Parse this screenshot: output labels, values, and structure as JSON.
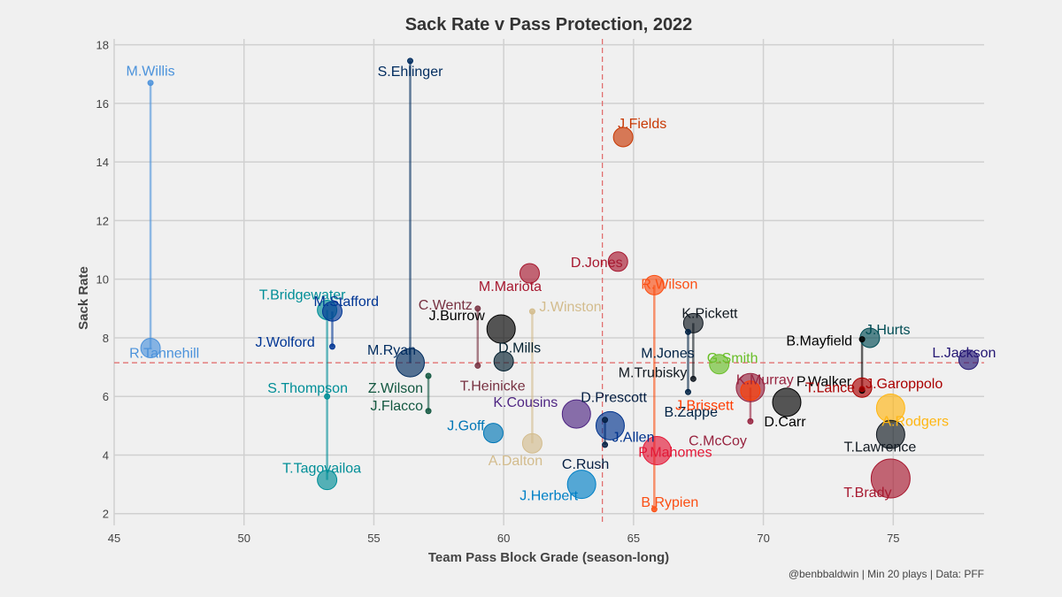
{
  "chart_data": {
    "type": "scatter",
    "title": "Sack Rate v Pass Protection, 2022",
    "xlabel": "Team Pass Block Grade (season-long)",
    "ylabel": "Sack Rate",
    "caption": "@benbbaldwin | Min 20 plays | Data: PFF",
    "xlim": [
      45,
      78.5
    ],
    "ylim": [
      1.6,
      18.2
    ],
    "xticks": [
      45,
      50,
      55,
      60,
      65,
      70,
      75
    ],
    "yticks": [
      2,
      4,
      6,
      8,
      10,
      12,
      14,
      16,
      18
    ],
    "grid": true,
    "reference_lines": {
      "x": 63.8,
      "y": 7.15
    },
    "points": [
      {
        "label": "M.Willis",
        "x": 46.4,
        "y": 16.7,
        "size": "small",
        "color": "#4b92db"
      },
      {
        "label": "R.Tannehill",
        "x": 46.4,
        "y": 7.65,
        "size": "medium",
        "color": "#4b92db"
      },
      {
        "label": "S.Ehlinger",
        "x": 56.4,
        "y": 17.45,
        "size": "small",
        "color": "#002c5f"
      },
      {
        "label": "M.Ryan",
        "x": 56.4,
        "y": 7.15,
        "size": "large",
        "color": "#002c5f"
      },
      {
        "label": "T.Bridgewater",
        "x": 53.2,
        "y": 8.95,
        "size": "medium",
        "color": "#008e97"
      },
      {
        "label": "S.Thompson",
        "x": 53.2,
        "y": 6.0,
        "size": "small",
        "color": "#008e97"
      },
      {
        "label": "T.Tagovailoa",
        "x": 53.2,
        "y": 3.15,
        "size": "medium",
        "color": "#008e97"
      },
      {
        "label": "M.Stafford",
        "x": 53.4,
        "y": 8.9,
        "size": "medium",
        "color": "#003594"
      },
      {
        "label": "J.Wolford",
        "x": 53.4,
        "y": 7.7,
        "size": "small",
        "color": "#003594"
      },
      {
        "label": "Z.Wilson",
        "x": 57.1,
        "y": 6.7,
        "size": "small",
        "color": "#125740"
      },
      {
        "label": "J.Flacco",
        "x": 57.1,
        "y": 5.5,
        "size": "small",
        "color": "#125740"
      },
      {
        "label": "C.Wentz",
        "x": 59.0,
        "y": 9.0,
        "size": "small",
        "color": "#773141"
      },
      {
        "label": "T.Heinicke",
        "x": 59.0,
        "y": 7.05,
        "size": "small",
        "color": "#773141"
      },
      {
        "label": "J.Burrow",
        "x": 59.9,
        "y": 8.3,
        "size": "large",
        "color": "#000000"
      },
      {
        "label": "D.Mills",
        "x": 60.0,
        "y": 7.2,
        "size": "medium",
        "color": "#03202f"
      },
      {
        "label": "M.Mariota",
        "x": 61.0,
        "y": 10.2,
        "size": "medium",
        "color": "#a71930"
      },
      {
        "label": "J.Winston",
        "x": 61.1,
        "y": 8.9,
        "size": "small",
        "color": "#d3bc8d"
      },
      {
        "label": "A.Dalton",
        "x": 61.1,
        "y": 4.4,
        "size": "medium",
        "color": "#d3bc8d"
      },
      {
        "label": "K.Cousins",
        "x": 62.8,
        "y": 5.4,
        "size": "large",
        "color": "#4f2683"
      },
      {
        "label": "J.Goff",
        "x": 59.6,
        "y": 4.75,
        "size": "medium",
        "color": "#0076b6"
      },
      {
        "label": "J.Herbert",
        "x": 63.0,
        "y": 3.0,
        "size": "large",
        "color": "#0080c6"
      },
      {
        "label": "D.Prescott",
        "x": 63.9,
        "y": 5.2,
        "size": "small",
        "color": "#041e42"
      },
      {
        "label": "C.Rush",
        "x": 63.9,
        "y": 4.35,
        "size": "small",
        "color": "#041e42"
      },
      {
        "label": "J.Allen",
        "x": 64.1,
        "y": 5.0,
        "size": "large",
        "color": "#00338d"
      },
      {
        "label": "J.Fields",
        "x": 64.6,
        "y": 14.85,
        "size": "medium",
        "color": "#c83803"
      },
      {
        "label": "D.Jones",
        "x": 64.4,
        "y": 10.6,
        "size": "medium",
        "color": "#a71930"
      },
      {
        "label": "R.Wilson",
        "x": 65.8,
        "y": 9.8,
        "size": "medium",
        "color": "#fb4f14"
      },
      {
        "label": "B.Rypien",
        "x": 65.8,
        "y": 2.15,
        "size": "small",
        "color": "#fb4f14"
      },
      {
        "label": "P.Mahomes",
        "x": 65.9,
        "y": 4.15,
        "size": "large",
        "color": "#e31837"
      },
      {
        "label": "K.Pickett",
        "x": 67.3,
        "y": 8.5,
        "size": "medium",
        "color": "#101820"
      },
      {
        "label": "M.Jones",
        "x": 67.1,
        "y": 8.2,
        "size": "small",
        "color": "#002244"
      },
      {
        "label": "B.Zappe",
        "x": 67.1,
        "y": 6.15,
        "size": "small",
        "color": "#002244"
      },
      {
        "label": "M.Trubisky",
        "x": 67.3,
        "y": 6.6,
        "size": "small",
        "color": "#101820"
      },
      {
        "label": "G.Smith",
        "x": 68.3,
        "y": 7.1,
        "size": "medium",
        "color": "#69be28"
      },
      {
        "label": "K.Murray",
        "x": 69.5,
        "y": 6.3,
        "size": "large",
        "color": "#97233f"
      },
      {
        "label": "J.Brissett",
        "x": 69.5,
        "y": 6.2,
        "size": "medium",
        "color": "#ff3c00"
      },
      {
        "label": "C.McCoy",
        "x": 69.5,
        "y": 5.15,
        "size": "small",
        "color": "#97233f"
      },
      {
        "label": "D.Carr",
        "x": 70.9,
        "y": 5.8,
        "size": "large",
        "color": "#000000"
      },
      {
        "label": "B.Mayfield",
        "x": 73.8,
        "y": 7.95,
        "size": "small",
        "color": "#000000"
      },
      {
        "label": "P.Walker",
        "x": 73.8,
        "y": 6.2,
        "size": "small",
        "color": "#000000"
      },
      {
        "label": "T.Lance",
        "x": 73.8,
        "y": 6.3,
        "size": "medium",
        "color": "#aa0000"
      },
      {
        "label": "J.Garoppolo",
        "x": 73.8,
        "y": 6.25,
        "size": "small",
        "color": "#aa0000"
      },
      {
        "label": "J.Hurts",
        "x": 74.1,
        "y": 8.0,
        "size": "medium",
        "color": "#004c54"
      },
      {
        "label": "A.Rodgers",
        "x": 74.9,
        "y": 5.6,
        "size": "large",
        "color": "#ffb612"
      },
      {
        "label": "T.Lawrence",
        "x": 74.9,
        "y": 4.7,
        "size": "large",
        "color": "#101820"
      },
      {
        "label": "T.Brady",
        "x": 74.9,
        "y": 3.2,
        "size": "xlarge",
        "color": "#a71930"
      },
      {
        "label": "L.Jackson",
        "x": 77.9,
        "y": 7.25,
        "size": "medium",
        "color": "#241773"
      }
    ],
    "connectors": [
      {
        "from": "M.Willis",
        "to": "R.Tannehill"
      },
      {
        "from": "S.Ehlinger",
        "to": "M.Ryan"
      },
      {
        "from": "T.Bridgewater",
        "to": "T.Tagovailoa"
      },
      {
        "from": "M.Stafford",
        "to": "J.Wolford"
      },
      {
        "from": "Z.Wilson",
        "to": "J.Flacco"
      },
      {
        "from": "C.Wentz",
        "to": "T.Heinicke"
      },
      {
        "from": "J.Winston",
        "to": "A.Dalton"
      },
      {
        "from": "D.Prescott",
        "to": "C.Rush"
      },
      {
        "from": "R.Wilson",
        "to": "B.Rypien"
      },
      {
        "from": "K.Pickett",
        "to": "M.Trubisky"
      },
      {
        "from": "M.Jones",
        "to": "B.Zappe"
      },
      {
        "from": "K.Murray",
        "to": "C.McCoy"
      },
      {
        "from": "B.Mayfield",
        "to": "P.Walker"
      }
    ]
  }
}
